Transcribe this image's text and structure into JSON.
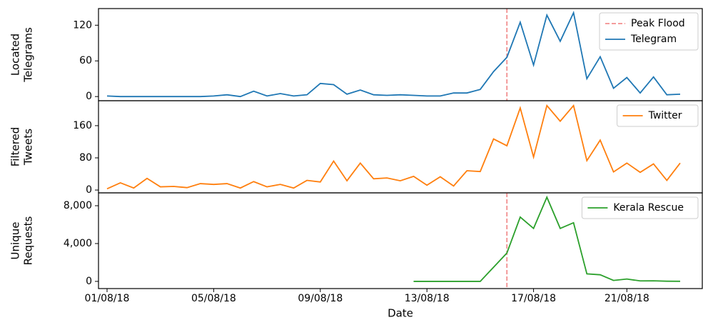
{
  "chart_data": [
    {
      "type": "line",
      "ylabel": [
        "Located",
        "Telegrams"
      ],
      "ylim": [
        -7,
        148
      ],
      "yticks": [
        0,
        60,
        120
      ],
      "vline": {
        "label": "Peak Flood",
        "x": 30,
        "color": "#f28e8e"
      },
      "series": [
        {
          "name": "Telegram",
          "color": "#1f77b4",
          "values": [
            1,
            0,
            0,
            0,
            0,
            0,
            0,
            0,
            1,
            3,
            0,
            9,
            1,
            5,
            1,
            3,
            22,
            20,
            4,
            11,
            3,
            2,
            3,
            2,
            1,
            1,
            6,
            6,
            12,
            42,
            66,
            125,
            53,
            137,
            93,
            141,
            30,
            67,
            14,
            32,
            6,
            33,
            3,
            4
          ]
        }
      ]
    },
    {
      "type": "line",
      "ylabel": [
        "Filtered",
        "Tweets"
      ],
      "ylim": [
        -7,
        222
      ],
      "yticks": [
        0,
        80,
        160
      ],
      "series": [
        {
          "name": "Twitter",
          "color": "#ff7f0e",
          "values": [
            3,
            18,
            5,
            29,
            8,
            9,
            6,
            16,
            14,
            16,
            5,
            21,
            8,
            14,
            5,
            24,
            20,
            72,
            23,
            67,
            28,
            30,
            23,
            34,
            12,
            33,
            10,
            48,
            46,
            127,
            110,
            204,
            82,
            210,
            171,
            210,
            73,
            124,
            45,
            67,
            44,
            65,
            24,
            67
          ]
        }
      ]
    },
    {
      "type": "line",
      "ylabel": [
        "Unique",
        "Requests"
      ],
      "ylim": [
        -760,
        9360
      ],
      "yticks": [
        0,
        {
          "value": 4000,
          "label": "4,000"
        },
        {
          "value": 8000,
          "label": "8,000"
        }
      ],
      "vline": {
        "x": 30,
        "color": "#f28e8e"
      },
      "xlabel": "Date",
      "categories": [
        "01/08/18",
        null,
        null,
        null,
        null,
        null,
        null,
        null,
        "05/08/18",
        null,
        null,
        null,
        null,
        null,
        null,
        null,
        "09/08/18",
        null,
        null,
        null,
        null,
        null,
        null,
        null,
        "13/08/18",
        null,
        null,
        null,
        null,
        null,
        null,
        null,
        "17/08/18",
        null,
        null,
        null,
        null,
        null,
        null,
        "21/08/18",
        null,
        null,
        null,
        null
      ],
      "series": [
        {
          "name": "Kerala Rescue",
          "color": "#2ca02c",
          "values": [
            null,
            null,
            null,
            null,
            null,
            null,
            null,
            null,
            null,
            null,
            null,
            null,
            null,
            null,
            null,
            null,
            null,
            null,
            null,
            null,
            null,
            null,
            null,
            0,
            0,
            0,
            0,
            0,
            0,
            1500,
            3000,
            6800,
            5600,
            8900,
            5600,
            6200,
            800,
            700,
            100,
            250,
            50,
            60,
            20,
            10
          ]
        }
      ]
    }
  ]
}
